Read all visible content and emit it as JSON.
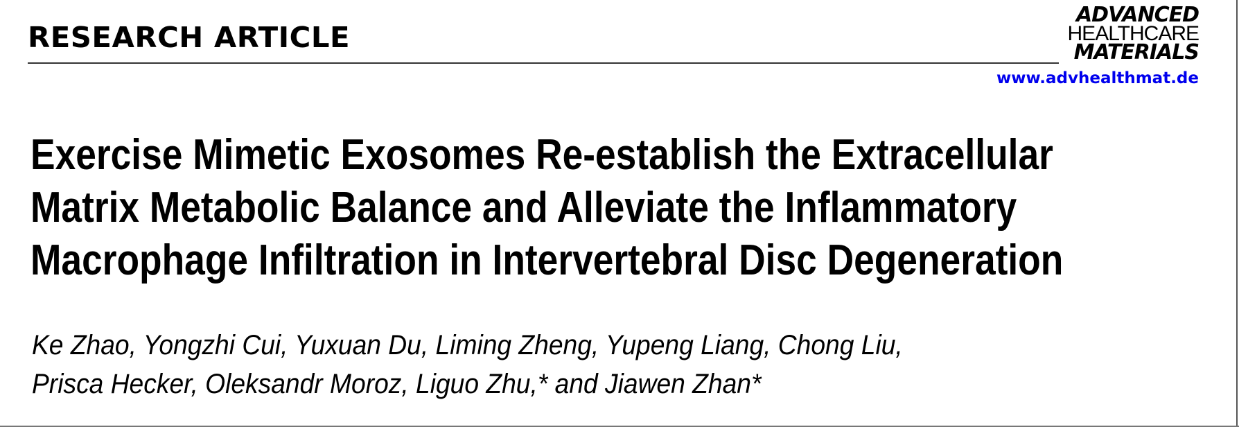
{
  "header": {
    "section_label": "RESEARCH ARTICLE",
    "journal_logo": [
      "ADVANCED",
      "HEALTHCARE",
      "MATERIALS"
    ],
    "journal_url": "www.advhealthmat.de",
    "link_color": "#0000ee"
  },
  "article": {
    "title_lines": [
      "Exercise Mimetic Exosomes Re-establish the Extracellular",
      "Matrix Metabolic Balance and Alleviate the Inflammatory",
      "Macrophage Infiltration in Intervertebral Disc Degeneration"
    ],
    "author_lines": [
      "Ke Zhao, Yongzhi Cui, Yuxuan Du, Liming Zheng, Yupeng Liang, Chong Liu,",
      "Prisca Hecker, Oleksandr Moroz, Liguo Zhu,* and Jiawen Zhan*"
    ]
  }
}
